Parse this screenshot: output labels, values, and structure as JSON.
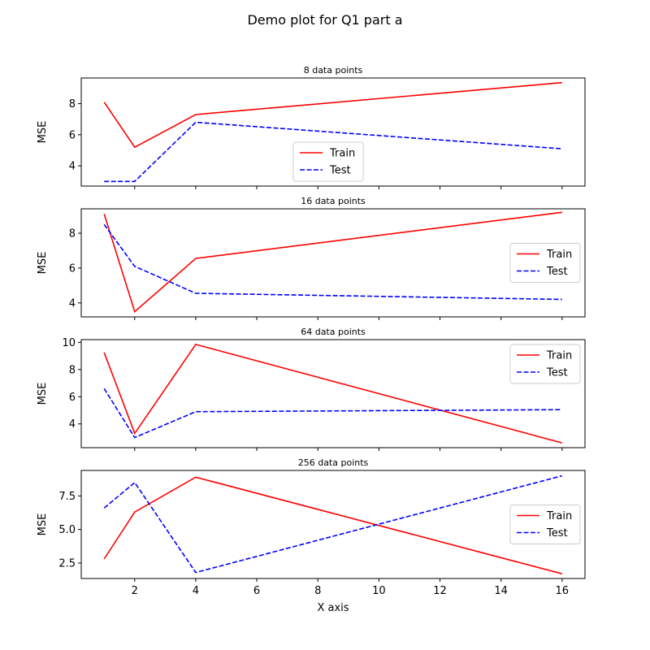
{
  "figure": {
    "title": "Demo plot for Q1 part a",
    "xlabel": "X axis"
  },
  "chart_data": [
    {
      "type": "line",
      "title": "8 data points",
      "ylabel": "MSE",
      "xlim": [
        0.25,
        16.75
      ],
      "ylim": [
        2.7,
        9.65
      ],
      "x": [
        1,
        2,
        4,
        16
      ],
      "xticks": [
        2,
        4,
        6,
        8,
        10,
        12,
        14,
        16
      ],
      "yticks": [
        4,
        6,
        8
      ],
      "legend": "lower-center",
      "series": [
        {
          "name": "Train",
          "color": "#ff0000",
          "dash": "solid",
          "values": [
            8.1,
            5.2,
            7.3,
            9.35
          ]
        },
        {
          "name": "Test",
          "color": "#0000ff",
          "dash": "dashed",
          "values": [
            3.0,
            3.0,
            6.8,
            5.1
          ]
        }
      ]
    },
    {
      "type": "line",
      "title": "16 data points",
      "ylabel": "MSE",
      "xlim": [
        0.25,
        16.75
      ],
      "ylim": [
        3.2,
        9.4
      ],
      "x": [
        1,
        2,
        4,
        16
      ],
      "xticks": [
        2,
        4,
        6,
        8,
        10,
        12,
        14,
        16
      ],
      "yticks": [
        4,
        6,
        8
      ],
      "legend": "center-right",
      "series": [
        {
          "name": "Train",
          "color": "#ff0000",
          "dash": "solid",
          "values": [
            9.1,
            3.5,
            6.55,
            9.2
          ]
        },
        {
          "name": "Test",
          "color": "#0000ff",
          "dash": "dashed",
          "values": [
            8.5,
            6.1,
            4.55,
            4.2
          ]
        }
      ]
    },
    {
      "type": "line",
      "title": "64 data points",
      "ylabel": "MSE",
      "xlim": [
        0.25,
        16.75
      ],
      "ylim": [
        2.25,
        10.2
      ],
      "x": [
        1,
        2,
        4,
        16
      ],
      "xticks": [
        2,
        4,
        6,
        8,
        10,
        12,
        14,
        16
      ],
      "yticks": [
        4,
        6,
        8,
        10
      ],
      "legend": "upper-right",
      "series": [
        {
          "name": "Train",
          "color": "#ff0000",
          "dash": "solid",
          "values": [
            9.25,
            3.3,
            9.85,
            2.6
          ]
        },
        {
          "name": "Test",
          "color": "#0000ff",
          "dash": "dashed",
          "values": [
            6.6,
            3.0,
            4.9,
            5.05
          ]
        }
      ]
    },
    {
      "type": "line",
      "title": "256 data points",
      "ylabel": "MSE",
      "xlim": [
        0.25,
        16.75
      ],
      "ylim": [
        1.35,
        9.4
      ],
      "x": [
        1,
        2,
        4,
        16
      ],
      "xticks": [
        2,
        4,
        6,
        8,
        10,
        12,
        14,
        16
      ],
      "yticks": [
        2.5,
        5.0,
        7.5
      ],
      "legend": "center-right",
      "series": [
        {
          "name": "Train",
          "color": "#ff0000",
          "dash": "solid",
          "values": [
            2.8,
            6.3,
            8.9,
            1.7
          ]
        },
        {
          "name": "Test",
          "color": "#0000ff",
          "dash": "dashed",
          "values": [
            6.6,
            8.5,
            1.8,
            9.0
          ]
        }
      ]
    }
  ]
}
